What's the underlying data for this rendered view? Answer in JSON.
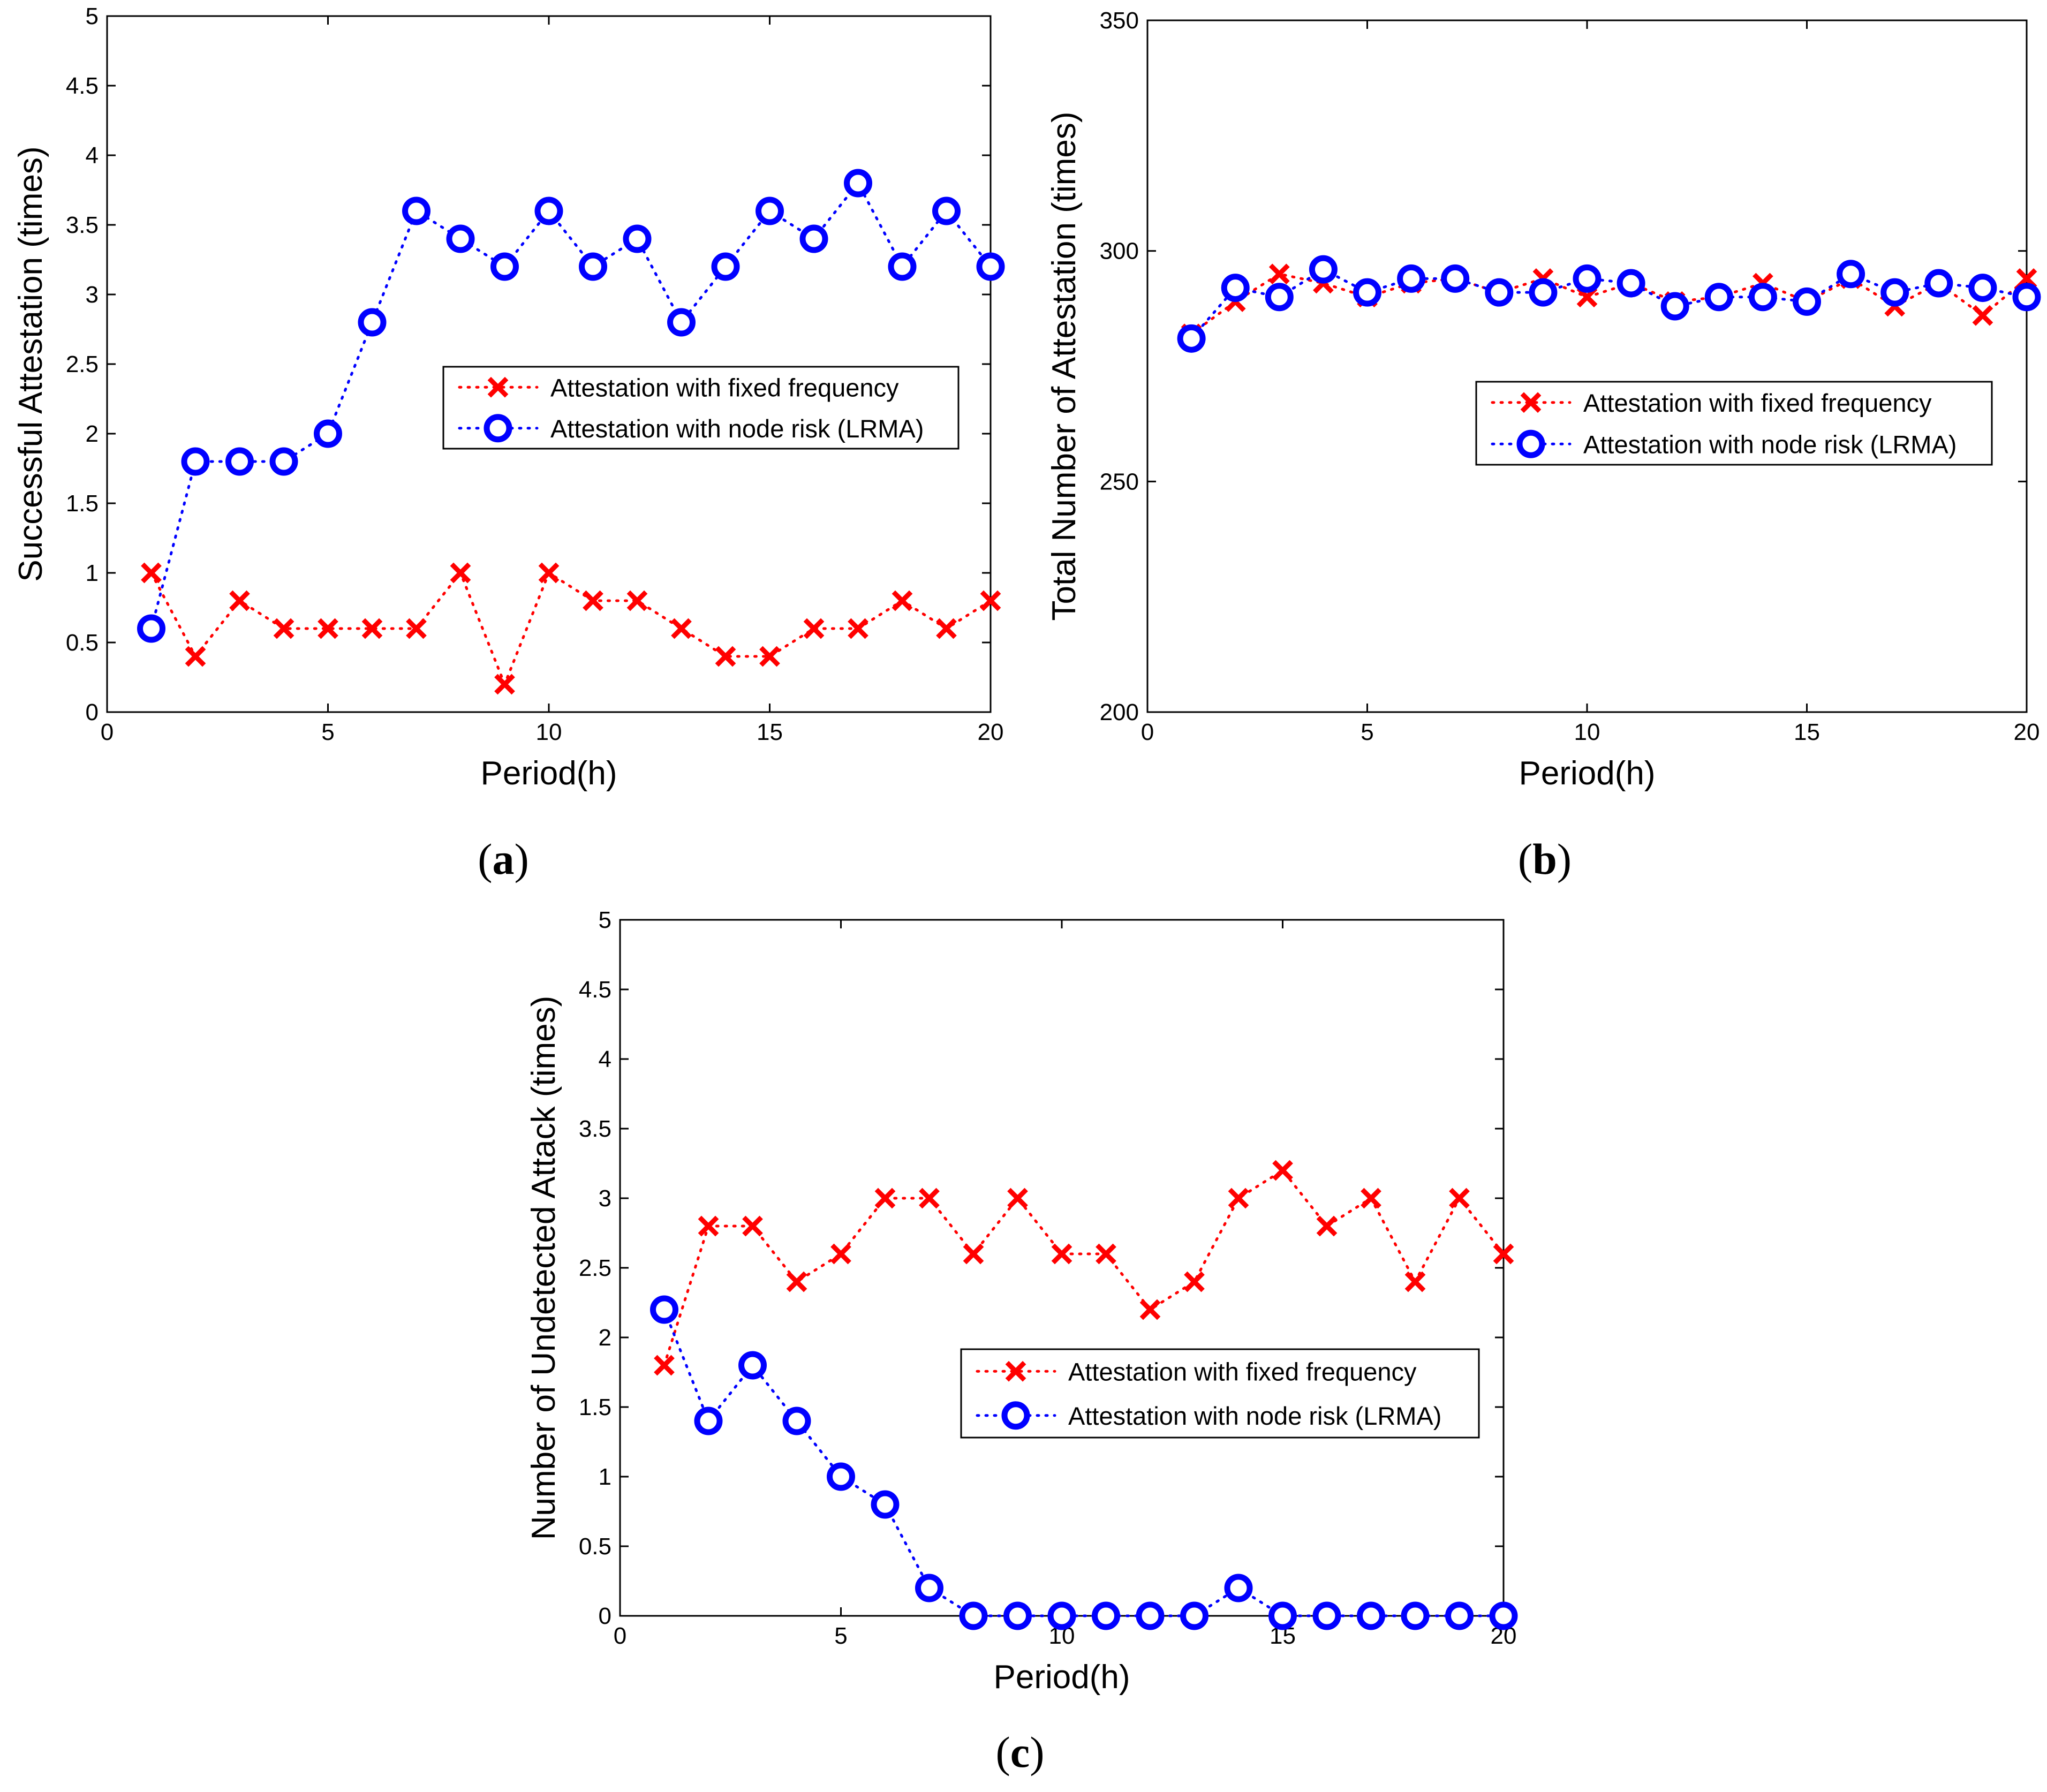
{
  "colors": {
    "fixed": "#ff0000",
    "lrma": "#0000ff",
    "axis": "#000000"
  },
  "chart_data": [
    {
      "panel": "a",
      "caption_open": "(",
      "caption_letter": "a",
      "caption_close": ")",
      "type": "line",
      "xlabel": "Period(h)",
      "ylabel": "Successful Attestation (times)",
      "xlim": [
        0,
        20
      ],
      "ylim": [
        0,
        5
      ],
      "xticks": [
        "0",
        "5",
        "10",
        "15",
        "20"
      ],
      "yticks": [
        "0",
        "0.5",
        "1",
        "1.5",
        "2",
        "2.5",
        "3",
        "3.5",
        "4",
        "4.5",
        "5"
      ],
      "xtick_values": [
        0,
        5,
        10,
        15,
        20
      ],
      "ytick_values": [
        0,
        0.5,
        1,
        1.5,
        2,
        2.5,
        3,
        3.5,
        4,
        4.5,
        5
      ],
      "legend_position": "right-middle",
      "x": [
        1,
        2,
        3,
        4,
        5,
        6,
        7,
        8,
        9,
        10,
        11,
        12,
        13,
        14,
        15,
        16,
        17,
        18,
        19,
        20
      ],
      "series": [
        {
          "name": "Attestation with fixed frequency",
          "marker": "x",
          "values": [
            1.0,
            0.4,
            0.8,
            0.6,
            0.6,
            0.6,
            0.6,
            1.0,
            0.2,
            1.0,
            0.8,
            0.8,
            0.6,
            0.4,
            0.4,
            0.6,
            0.6,
            0.8,
            0.6,
            0.8
          ]
        },
        {
          "name": "Attestation with node risk (LRMA)",
          "marker": "o",
          "values": [
            0.6,
            1.8,
            1.8,
            1.8,
            2.0,
            2.8,
            3.6,
            3.4,
            3.2,
            3.6,
            3.2,
            3.4,
            2.8,
            3.2,
            3.6,
            3.4,
            3.8,
            3.2,
            3.6,
            3.2
          ]
        }
      ]
    },
    {
      "panel": "b",
      "caption_open": "(",
      "caption_letter": "b",
      "caption_close": ")",
      "type": "line",
      "xlabel": "Period(h)",
      "ylabel": "Total Number of Attestation (times)",
      "xlim": [
        0,
        20
      ],
      "ylim": [
        200,
        350
      ],
      "xticks": [
        "0",
        "5",
        "10",
        "15",
        "20"
      ],
      "yticks": [
        "200",
        "250",
        "300",
        "350"
      ],
      "xtick_values": [
        0,
        5,
        10,
        15,
        20
      ],
      "ytick_values": [
        200,
        250,
        300,
        350
      ],
      "legend_position": "right-middle",
      "x": [
        1,
        2,
        3,
        4,
        5,
        6,
        7,
        8,
        9,
        10,
        11,
        12,
        13,
        14,
        15,
        16,
        17,
        18,
        19,
        20
      ],
      "series": [
        {
          "name": "Attestation with fixed frequency",
          "marker": "x",
          "values": [
            282,
            289,
            295,
            293,
            290,
            293,
            294,
            291,
            294,
            290,
            293,
            289,
            290,
            293,
            289,
            294,
            288,
            293,
            286,
            294
          ]
        },
        {
          "name": "Attestation with node risk (LRMA)",
          "marker": "o",
          "values": [
            281,
            292,
            290,
            296,
            291,
            294,
            294,
            291,
            291,
            294,
            293,
            288,
            290,
            290,
            289,
            295,
            291,
            293,
            292,
            290
          ]
        }
      ]
    },
    {
      "panel": "c",
      "caption_open": "(",
      "caption_letter": "c",
      "caption_close": ")",
      "type": "line",
      "xlabel": "Period(h)",
      "ylabel": "Number of Undetected Attack (times)",
      "xlim": [
        0,
        20
      ],
      "ylim": [
        0,
        5
      ],
      "xticks": [
        "0",
        "5",
        "10",
        "15",
        "20"
      ],
      "yticks": [
        "0",
        "0.5",
        "1",
        "1.5",
        "2",
        "2.5",
        "3",
        "3.5",
        "4",
        "4.5",
        "5"
      ],
      "xtick_values": [
        0,
        5,
        10,
        15,
        20
      ],
      "ytick_values": [
        0,
        0.5,
        1,
        1.5,
        2,
        2.5,
        3,
        3.5,
        4,
        4.5,
        5
      ],
      "legend_position": "right-middle",
      "x": [
        1,
        2,
        3,
        4,
        5,
        6,
        7,
        8,
        9,
        10,
        11,
        12,
        13,
        14,
        15,
        16,
        17,
        18,
        19,
        20
      ],
      "series": [
        {
          "name": "Attestation with fixed frequency",
          "marker": "x",
          "values": [
            1.8,
            2.8,
            2.8,
            2.4,
            2.6,
            3.0,
            3.0,
            2.6,
            3.0,
            2.6,
            2.6,
            2.2,
            2.4,
            3.0,
            3.2,
            2.8,
            3.0,
            2.4,
            3.0,
            2.6
          ]
        },
        {
          "name": "Attestation with node risk (LRMA)",
          "marker": "o",
          "values": [
            2.2,
            1.4,
            1.8,
            1.4,
            1.0,
            0.8,
            0.2,
            0,
            0,
            0,
            0,
            0,
            0,
            0.2,
            0,
            0,
            0,
            0,
            0,
            0
          ]
        }
      ]
    }
  ]
}
